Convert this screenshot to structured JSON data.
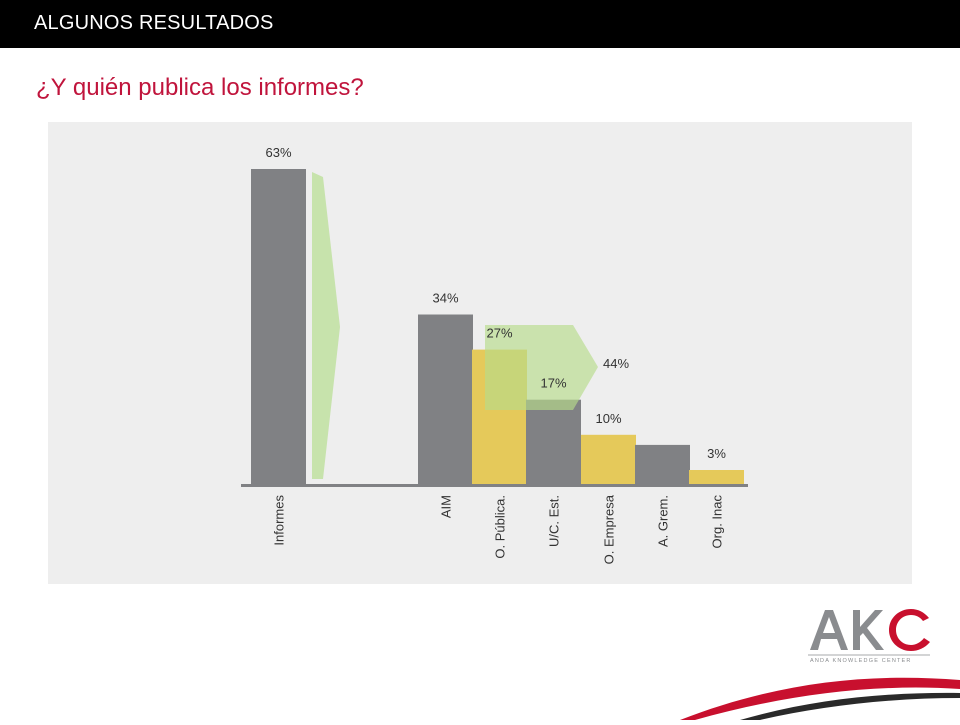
{
  "header": {
    "section_title": "ALGUNOS RESULTADOS"
  },
  "page": {
    "title": "¿Y quién publica los informes?"
  },
  "logo": {
    "letters": "AKC",
    "tagline": "ANDA KNOWLEDGE CENTER"
  },
  "colors": {
    "gray_bar": "#808184",
    "yellow_bar": "#e5c95a",
    "arrow_green": "#bfe0a0",
    "title_red": "#c0143c",
    "panel_bg": "#eeeeee",
    "brand_red": "#c8102e"
  },
  "chart_data": {
    "type": "bar",
    "title": "",
    "categories": [
      "Informes",
      "AIM",
      "O. Pública.",
      "U/C. Est.",
      "O. Empresa",
      "A. Grem.",
      "Org. Inac"
    ],
    "values": [
      63,
      34,
      27,
      17,
      10,
      8,
      3
    ],
    "value_labels": [
      "63%",
      "34%",
      "27%",
      "17%",
      "10%",
      "",
      "3%"
    ],
    "bar_colors": [
      "gray",
      "gray",
      "yellow",
      "gray",
      "yellow",
      "gray",
      "yellow"
    ],
    "annotation": {
      "text": "44%",
      "note_values": [
        27,
        17
      ]
    },
    "ylim": [
      0,
      65
    ],
    "grid": false,
    "legend": "none"
  }
}
